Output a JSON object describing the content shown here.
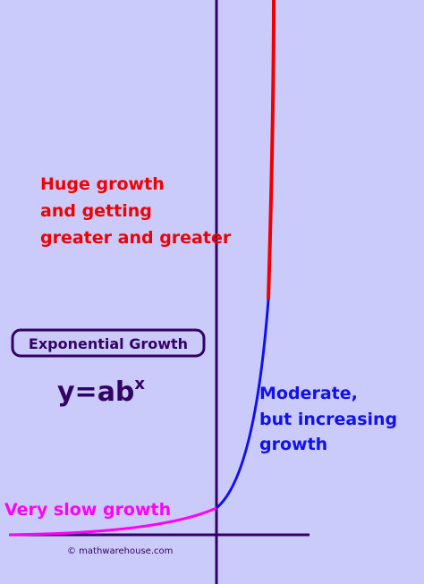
{
  "annotations": {
    "huge": [
      "Huge growth",
      "and getting",
      "greater and greater"
    ],
    "moderate": [
      "Moderate,",
      "but increasing",
      "growth"
    ],
    "slow": "Very slow growth"
  },
  "label_box": "Exponential Growth",
  "formula": {
    "base": "y=ab",
    "exponent": "x"
  },
  "credit": "© mathwarehouse.com"
}
